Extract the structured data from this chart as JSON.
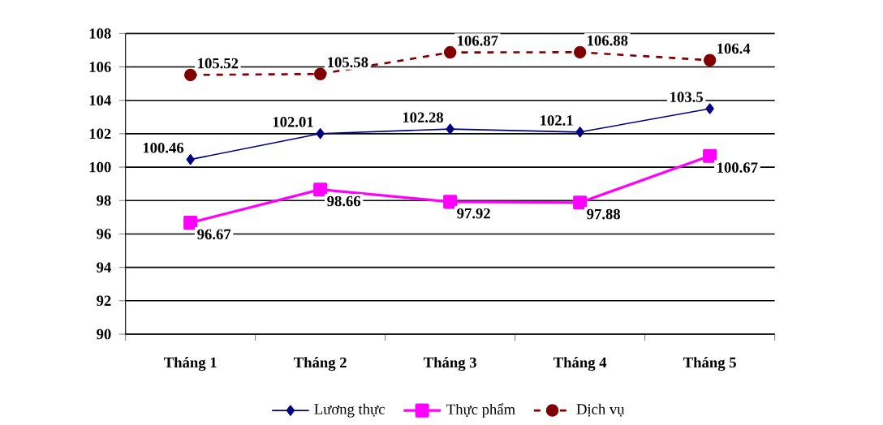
{
  "chart_data": {
    "type": "line",
    "categories": [
      "Tháng 1",
      "Tháng 2",
      "Tháng 3",
      "Tháng 4",
      "Tháng 5"
    ],
    "series": [
      {
        "name": "Lương thực",
        "color": "#000080",
        "values": [
          100.46,
          102.01,
          102.28,
          102.1,
          103.5
        ],
        "marker": "diamond",
        "line_style": "solid"
      },
      {
        "name": "Thực phẩm",
        "color": "#ff00ff",
        "values": [
          96.67,
          98.66,
          97.92,
          97.88,
          100.67
        ],
        "marker": "square",
        "line_style": "solid"
      },
      {
        "name": "Dịch vụ",
        "color": "#800000",
        "values": [
          105.52,
          105.58,
          106.87,
          106.88,
          106.4
        ],
        "marker": "circle",
        "line_style": "dashed"
      }
    ],
    "ylim": [
      90,
      108
    ],
    "yticks": [
      90,
      92,
      94,
      96,
      98,
      100,
      102,
      104,
      106,
      108
    ],
    "grid": "y",
    "legend": "bottom",
    "data_labels": true
  }
}
